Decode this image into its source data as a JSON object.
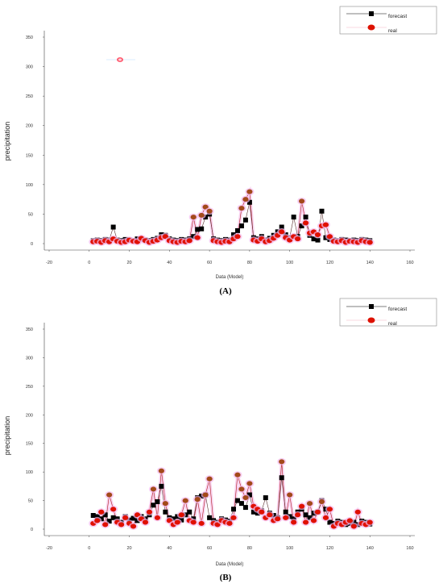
{
  "panels": [
    {
      "label": "(A)",
      "chart_data": {
        "type": "line",
        "xlabel": "Data (Model)",
        "ylabel": "precipitation",
        "xlim": [
          -20,
          160
        ],
        "ylim": [
          0,
          350
        ],
        "xticks": [
          "-20",
          "0",
          "20",
          "40",
          "60",
          "80",
          "100",
          "120",
          "140",
          "160"
        ],
        "yticks": [
          "0",
          "50",
          "100",
          "150",
          "200",
          "250",
          "300",
          "350"
        ],
        "legend_position": "top-right",
        "series": [
          {
            "name": "forecast",
            "marker": "square",
            "color": "#000000",
            "x": [
              2,
              4,
              6,
              8,
              10,
              12,
              14,
              16,
              18,
              20,
              22,
              24,
              26,
              28,
              30,
              32,
              34,
              36,
              38,
              40,
              42,
              44,
              46,
              48,
              50,
              52,
              54,
              56,
              58,
              60,
              62,
              64,
              66,
              68,
              70,
              72,
              74,
              76,
              78,
              80,
              82,
              84,
              86,
              88,
              90,
              92,
              94,
              96,
              98,
              100,
              102,
              104,
              106,
              108,
              110,
              112,
              114,
              116,
              118,
              120,
              122,
              124,
              126,
              128,
              130,
              132,
              134,
              136,
              138,
              140
            ],
            "y": [
              5,
              6,
              5,
              7,
              6,
              28,
              6,
              5,
              7,
              6,
              5,
              8,
              7,
              6,
              5,
              7,
              9,
              15,
              14,
              8,
              6,
              5,
              7,
              6,
              8,
              12,
              24,
              25,
              45,
              50,
              8,
              6,
              5,
              7,
              6,
              15,
              22,
              30,
              40,
              70,
              10,
              8,
              12,
              6,
              9,
              14,
              20,
              28,
              15,
              10,
              45,
              12,
              30,
              45,
              14,
              8,
              6,
              55,
              10,
              7,
              6,
              5,
              7,
              6,
              5,
              6,
              5,
              7,
              6,
              5
            ]
          },
          {
            "name": "real",
            "marker": "circle",
            "color": "#cc1100",
            "x": [
              2,
              4,
              6,
              8,
              10,
              12,
              14,
              16,
              18,
              20,
              22,
              24,
              26,
              28,
              30,
              32,
              34,
              36,
              38,
              40,
              42,
              44,
              46,
              48,
              50,
              52,
              54,
              56,
              58,
              60,
              62,
              64,
              66,
              68,
              70,
              72,
              74,
              76,
              78,
              80,
              82,
              84,
              86,
              88,
              90,
              92,
              94,
              96,
              98,
              100,
              102,
              104,
              106,
              108,
              110,
              112,
              114,
              116,
              118,
              120,
              122,
              124,
              126,
              128,
              130,
              132,
              134,
              136,
              138,
              140
            ],
            "y": [
              3,
              4,
              2,
              5,
              3,
              8,
              4,
              2,
              3,
              6,
              4,
              3,
              9,
              5,
              2,
              4,
              6,
              10,
              12,
              5,
              3,
              2,
              4,
              3,
              5,
              45,
              10,
              48,
              62,
              55,
              5,
              3,
              2,
              4,
              3,
              8,
              12,
              60,
              75,
              88,
              6,
              4,
              8,
              3,
              5,
              9,
              14,
              20,
              10,
              6,
              12,
              8,
              72,
              35,
              18,
              20,
              15,
              30,
              32,
              12,
              4,
              3,
              5,
              2,
              4,
              3,
              2,
              5,
              3,
              2
            ]
          }
        ]
      }
    },
    {
      "label": "(B)",
      "chart_data": {
        "type": "line",
        "xlabel": "Data (Model)",
        "ylabel": "precipitation",
        "xlim": [
          -20,
          160
        ],
        "ylim": [
          0,
          350
        ],
        "xticks": [
          "-20",
          "0",
          "20",
          "40",
          "60",
          "80",
          "100",
          "120",
          "140",
          "160"
        ],
        "yticks": [
          "0",
          "50",
          "100",
          "150",
          "200",
          "250",
          "300",
          "350"
        ],
        "legend_position": "top-right",
        "series": [
          {
            "name": "forecast",
            "marker": "square",
            "color": "#000000",
            "x": [
              2,
              4,
              6,
              8,
              10,
              12,
              14,
              16,
              18,
              20,
              22,
              24,
              26,
              28,
              30,
              32,
              34,
              36,
              38,
              40,
              42,
              44,
              46,
              48,
              50,
              52,
              54,
              56,
              58,
              60,
              62,
              64,
              66,
              68,
              70,
              72,
              74,
              76,
              78,
              80,
              82,
              84,
              86,
              88,
              90,
              92,
              94,
              96,
              98,
              100,
              102,
              104,
              106,
              108,
              110,
              112,
              114,
              116,
              118,
              120,
              122,
              124,
              126,
              128,
              130,
              132,
              134,
              136,
              138,
              140
            ],
            "y": [
              24,
              22,
              18,
              25,
              14,
              20,
              18,
              12,
              22,
              16,
              19,
              15,
              22,
              18,
              25,
              42,
              48,
              75,
              30,
              20,
              18,
              22,
              16,
              25,
              30,
              18,
              55,
              58,
              60,
              20,
              15,
              12,
              18,
              16,
              14,
              35,
              50,
              45,
              38,
              60,
              30,
              28,
              32,
              55,
              28,
              24,
              20,
              90,
              30,
              22,
              18,
              30,
              35,
              25,
              20,
              28,
              30,
              50,
              35,
              12,
              10,
              14,
              12,
              8,
              10,
              12,
              8,
              14,
              12,
              9
            ]
          },
          {
            "name": "real",
            "marker": "circle",
            "color": "#cc1100",
            "x": [
              2,
              4,
              6,
              8,
              10,
              12,
              14,
              16,
              18,
              20,
              22,
              24,
              26,
              28,
              30,
              32,
              34,
              36,
              38,
              40,
              42,
              44,
              46,
              48,
              50,
              52,
              54,
              56,
              58,
              60,
              62,
              64,
              66,
              68,
              70,
              72,
              74,
              76,
              78,
              80,
              82,
              84,
              86,
              88,
              90,
              92,
              94,
              96,
              98,
              100,
              102,
              104,
              106,
              108,
              110,
              112,
              114,
              116,
              118,
              120,
              122,
              124,
              126,
              128,
              130,
              132,
              134,
              136,
              138,
              140
            ],
            "y": [
              10,
              15,
              30,
              8,
              60,
              35,
              12,
              8,
              20,
              10,
              5,
              25,
              18,
              12,
              30,
              70,
              20,
              102,
              45,
              15,
              8,
              12,
              25,
              50,
              15,
              12,
              52,
              10,
              60,
              88,
              10,
              8,
              15,
              12,
              10,
              20,
              95,
              70,
              55,
              80,
              40,
              35,
              30,
              20,
              25,
              15,
              18,
              118,
              20,
              60,
              12,
              25,
              40,
              12,
              45,
              15,
              30,
              48,
              20,
              35,
              5,
              10,
              8,
              12,
              15,
              5,
              30,
              10,
              8,
              12
            ]
          }
        ]
      }
    }
  ]
}
